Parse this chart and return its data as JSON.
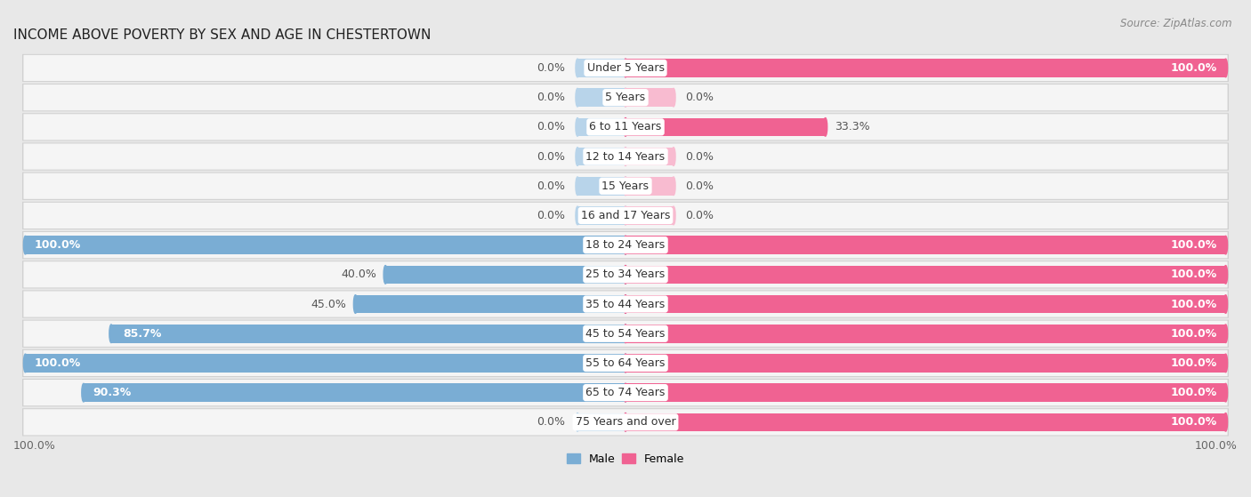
{
  "title": "INCOME ABOVE POVERTY BY SEX AND AGE IN CHESTERTOWN",
  "source": "Source: ZipAtlas.com",
  "categories": [
    "Under 5 Years",
    "5 Years",
    "6 to 11 Years",
    "12 to 14 Years",
    "15 Years",
    "16 and 17 Years",
    "18 to 24 Years",
    "25 to 34 Years",
    "35 to 44 Years",
    "45 to 54 Years",
    "55 to 64 Years",
    "65 to 74 Years",
    "75 Years and over"
  ],
  "male_values": [
    0.0,
    0.0,
    0.0,
    0.0,
    0.0,
    0.0,
    100.0,
    40.0,
    45.0,
    85.7,
    100.0,
    90.3,
    0.0
  ],
  "female_values": [
    100.0,
    0.0,
    33.3,
    0.0,
    0.0,
    0.0,
    100.0,
    100.0,
    100.0,
    100.0,
    100.0,
    100.0,
    100.0
  ],
  "male_color": "#7aadd4",
  "male_color_light": "#b8d4ea",
  "female_color": "#f06292",
  "female_color_light": "#f8bbd0",
  "male_label": "Male",
  "female_label": "Female",
  "xlim": 100,
  "bar_height": 0.62,
  "bg_color": "#e8e8e8",
  "row_bg_color": "#f5f5f5",
  "row_border_color": "#d0d0d0",
  "title_fontsize": 11,
  "label_fontsize": 9,
  "tick_fontsize": 9,
  "source_fontsize": 8.5,
  "value_label_color_dark": "#555555",
  "value_label_color_white": "#ffffff"
}
